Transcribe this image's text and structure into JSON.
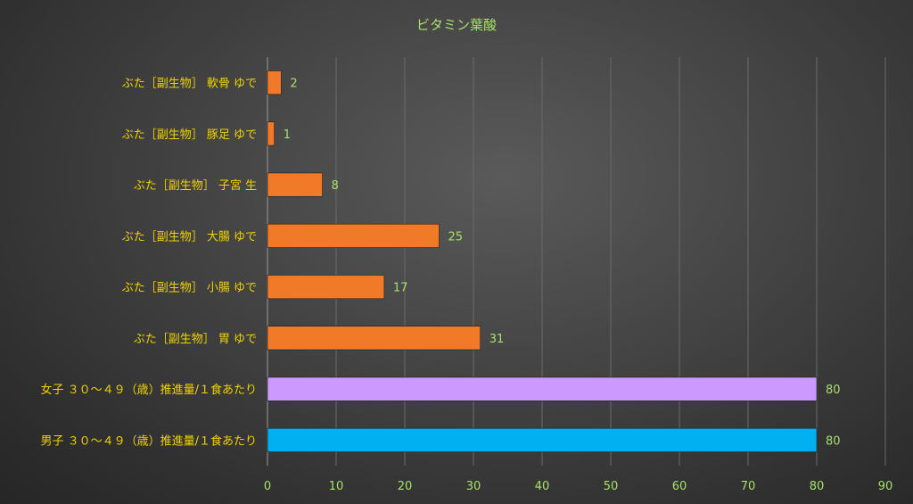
{
  "colors": {
    "background": "#3d3d3d",
    "text_category": "#f0d200",
    "text_values": "#a6e06a",
    "gridline": "#6a6a6a",
    "axis": "#9a9a9a"
  },
  "chart_data": {
    "type": "bar",
    "orientation": "horizontal",
    "title": "ビタミン葉酸",
    "xlabel": "",
    "ylabel": "",
    "xlim": [
      0,
      90
    ],
    "ticks": [
      0,
      10,
      20,
      30,
      40,
      50,
      60,
      70,
      80,
      90
    ],
    "grid": true,
    "legend": "none",
    "categories": [
      "ぶた［副生物］ 軟骨 ゆで",
      "ぶた［副生物］ 豚足 ゆで",
      "ぶた［副生物］ 子宮 生",
      "ぶた［副生物］ 大腸 ゆで",
      "ぶた［副生物］ 小腸 ゆで",
      "ぶた［副生物］ 胃 ゆで",
      "女子 ３０～４９（歳）推進量/１食あたり",
      "男子 ３０～４９（歳）推進量/１食あたり"
    ],
    "values": [
      2,
      1,
      8,
      25,
      17,
      31,
      80,
      80
    ],
    "bar_colors": [
      "#f07a28",
      "#f07a28",
      "#f07a28",
      "#f07a28",
      "#f07a28",
      "#f07a28",
      "#cc99ff",
      "#00b0f0"
    ]
  }
}
